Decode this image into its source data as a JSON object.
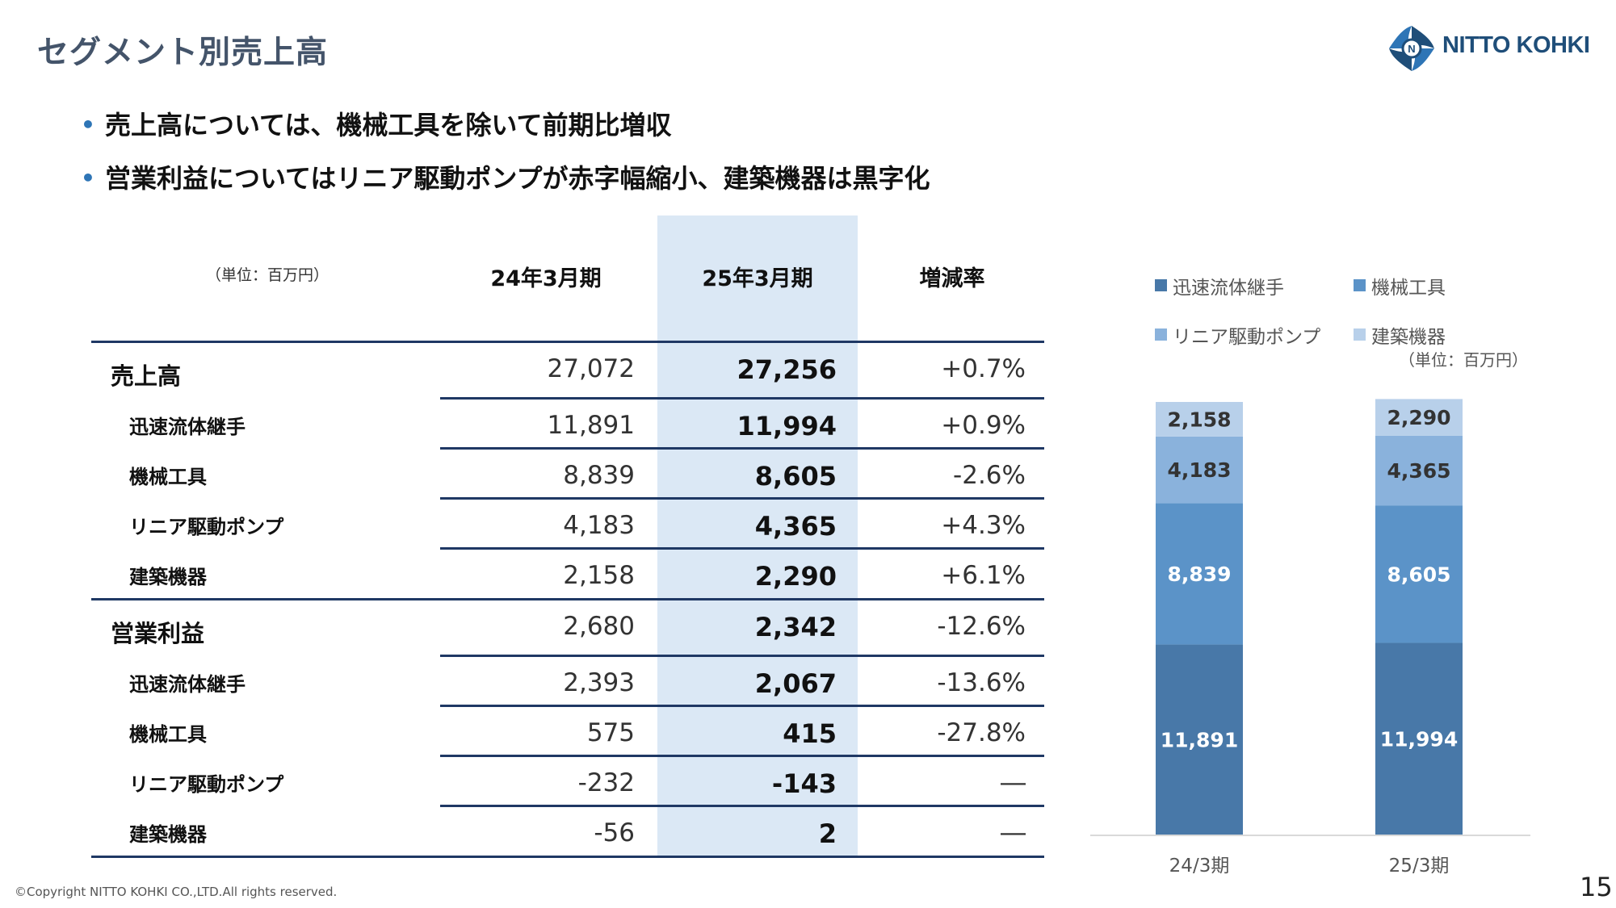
{
  "page": {
    "title": "セグメント別売上高",
    "logo_text": "NITTO KOHKI",
    "bullets": [
      "売上高については、機械工具を除いて前期比増収",
      "営業利益についてはリニア駆動ポンプが赤字幅縮小、建築機器は黒字化"
    ],
    "footer": "©Copyright NITTO KOHKI CO.,LTD.All rights reserved.",
    "page_number": "15"
  },
  "table": {
    "unit": "（単位：百万円）",
    "headers": [
      "24年3月期",
      "25年3月期",
      "増減率"
    ],
    "rows": [
      {
        "label": "売上高",
        "level": 0,
        "prev": "27,072",
        "curr": "27,256",
        "change": "+0.7%"
      },
      {
        "label": "迅速流体継手",
        "level": 1,
        "prev": "11,891",
        "curr": "11,994",
        "change": "+0.9%"
      },
      {
        "label": "機械工具",
        "level": 1,
        "prev": "8,839",
        "curr": "8,605",
        "change": "-2.6%"
      },
      {
        "label": "リニア駆動ポンプ",
        "level": 1,
        "prev": "4,183",
        "curr": "4,365",
        "change": "+4.3%"
      },
      {
        "label": "建築機器",
        "level": 1,
        "prev": "2,158",
        "curr": "2,290",
        "change": "+6.1%"
      },
      {
        "label": "営業利益",
        "level": 0,
        "prev": "2,680",
        "curr": "2,342",
        "change": "-12.6%"
      },
      {
        "label": "迅速流体継手",
        "level": 1,
        "prev": "2,393",
        "curr": "2,067",
        "change": "-13.6%"
      },
      {
        "label": "機械工具",
        "level": 1,
        "prev": "575",
        "curr": "415",
        "change": "-27.8%"
      },
      {
        "label": "リニア駆動ポンプ",
        "level": 1,
        "prev": "-232",
        "curr": "-143",
        "change": "―"
      },
      {
        "label": "建築機器",
        "level": 1,
        "prev": "-56",
        "curr": "2",
        "change": "―"
      }
    ]
  },
  "chart_data": {
    "type": "bar",
    "stacked": true,
    "unit": "（単位：百万円）",
    "categories": [
      "24/3期",
      "25/3期"
    ],
    "series": [
      {
        "name": "迅速流体継手",
        "color": "#4878a8",
        "values": [
          11891,
          11994
        ]
      },
      {
        "name": "機械工具",
        "color": "#5b93c8",
        "values": [
          8839,
          8605
        ]
      },
      {
        "name": "リニア駆動ポンプ",
        "color": "#8ab2dc",
        "values": [
          4183,
          4365
        ]
      },
      {
        "name": "建築機器",
        "color": "#b8d0ea",
        "values": [
          2158,
          2290
        ]
      }
    ],
    "legend_position": "top",
    "data_labels": true,
    "grid": false
  }
}
